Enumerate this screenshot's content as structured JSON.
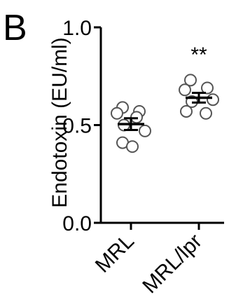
{
  "panel_label": "B",
  "chart_data": {
    "type": "scatter",
    "ylabel": "Endotoxin (EU/ml)",
    "xlabel": "",
    "ylim": [
      0.0,
      1.0
    ],
    "yticks": [
      {
        "value": 0.0,
        "label": "0.0"
      },
      {
        "value": 0.5,
        "label": "0.5"
      },
      {
        "value": 1.0,
        "label": "1.0"
      }
    ],
    "categories": [
      "MRL",
      "MRL/lpr"
    ],
    "groups": [
      {
        "category": "MRL",
        "points": [
          0.59,
          0.57,
          0.56,
          0.54,
          0.5,
          0.47,
          0.41,
          0.39
        ],
        "mean": 0.505,
        "sem": 0.03,
        "significance": ""
      },
      {
        "category": "MRL/lpr",
        "points": [
          0.73,
          0.69,
          0.68,
          0.63,
          0.62,
          0.57,
          0.56
        ],
        "mean": 0.64,
        "sem": 0.025,
        "significance": "**"
      }
    ],
    "marker": "open-circle",
    "grid": false,
    "legend": "none",
    "colors": {
      "axis": "#000000",
      "marker_edge": "#555555",
      "marker_fill": "#ffffff"
    }
  }
}
